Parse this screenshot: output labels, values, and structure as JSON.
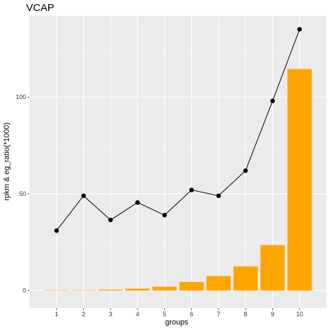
{
  "chart_data": {
    "type": "bar",
    "title": "VCAP",
    "xlabel": "groups",
    "ylabel": "rpkm & eg_ratio(*1000)",
    "categories": [
      "1",
      "2",
      "3",
      "4",
      "5",
      "6",
      "7",
      "8",
      "9",
      "10"
    ],
    "series": [
      {
        "type": "bar",
        "values": [
          0.1,
          0.2,
          0.5,
          1.0,
          2.0,
          4.5,
          7.5,
          12.5,
          23.5,
          114.5
        ]
      },
      {
        "type": "line",
        "values": [
          31,
          49,
          36.5,
          45.5,
          39,
          52,
          49,
          62,
          98,
          135
        ]
      }
    ],
    "y_ticks": [
      0,
      50,
      100
    ],
    "ylim": [
      -9,
      142
    ],
    "grid": true,
    "colors": {
      "bar": "#FFA500",
      "line": "#000000",
      "panel_background": "#EBEBEB",
      "grid_major": "#FFFFFF",
      "grid_minor": "#F5F5F5"
    }
  }
}
